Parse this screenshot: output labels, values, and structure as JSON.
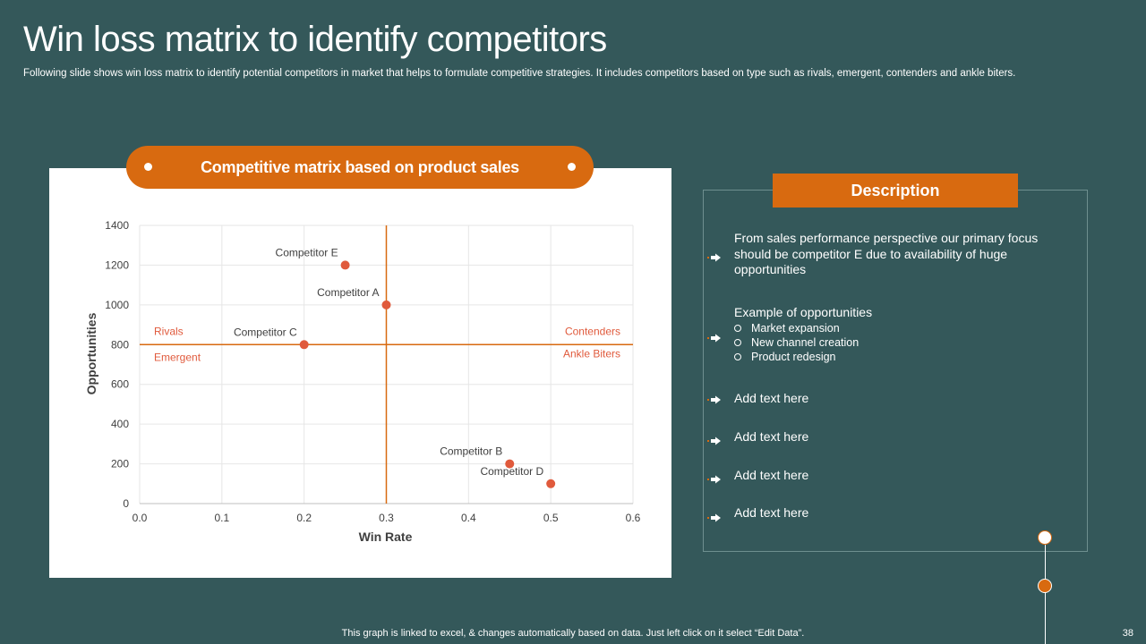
{
  "slide": {
    "title": "Win loss matrix to identify competitors",
    "subtitle": "Following slide shows win loss matrix to identify potential competitors in market that helps to formulate competitive strategies. It includes competitors based on type such as rivals, emergent, contenders and ankle biters.",
    "footer_note": "This graph is linked to excel, & changes automatically based on data. Just left click on it select “Edit Data”.",
    "page_number": "38"
  },
  "chart_data": {
    "type": "scatter",
    "title": "Competitive matrix based on product sales",
    "xlabel": "Win Rate",
    "ylabel": "Opportunities",
    "xlim": [
      0,
      0.6
    ],
    "ylim": [
      0,
      1400
    ],
    "x_ticks": [
      "0.0",
      "0.1",
      "0.2",
      "0.3",
      "0.4",
      "0.5",
      "0.6"
    ],
    "y_ticks": [
      "0",
      "200",
      "400",
      "600",
      "800",
      "1000",
      "1200",
      "1400"
    ],
    "grid": true,
    "divider": {
      "x": 0.3,
      "y": 800
    },
    "quadrant_labels": [
      {
        "text": "Rivals",
        "position": "upper-left"
      },
      {
        "text": "Emergent",
        "position": "lower-left"
      },
      {
        "text": "Contenders",
        "position": "upper-right"
      },
      {
        "text": "Ankle Biters",
        "position": "lower-right"
      }
    ],
    "points": [
      {
        "label": "Competitor E",
        "x": 0.25,
        "y": 1200
      },
      {
        "label": "Competitor A",
        "x": 0.3,
        "y": 1000
      },
      {
        "label": "Competitor C",
        "x": 0.2,
        "y": 800
      },
      {
        "label": "Competitor B",
        "x": 0.45,
        "y": 200
      },
      {
        "label": "Competitor D",
        "x": 0.5,
        "y": 100
      }
    ],
    "colors": {
      "point": "#E05A3C",
      "divider": "#D86A10",
      "quadrant_label": "#E05A3C"
    }
  },
  "description": {
    "header": "Description",
    "items": [
      {
        "text": "From sales performance perspective our primary focus should be competitor E due to availability of huge opportunities"
      },
      {
        "text": "Example of opportunities",
        "sub": [
          "Market expansion",
          "New channel creation",
          "Product redesign"
        ]
      },
      {
        "text": "Add text here"
      },
      {
        "text": "Add text here"
      },
      {
        "text": "Add text here"
      },
      {
        "text": "Add text here"
      }
    ]
  },
  "colors": {
    "background": "#34585A",
    "accent": "#D86A10"
  },
  "icons": {
    "bullet": "arrow-right-icon"
  }
}
